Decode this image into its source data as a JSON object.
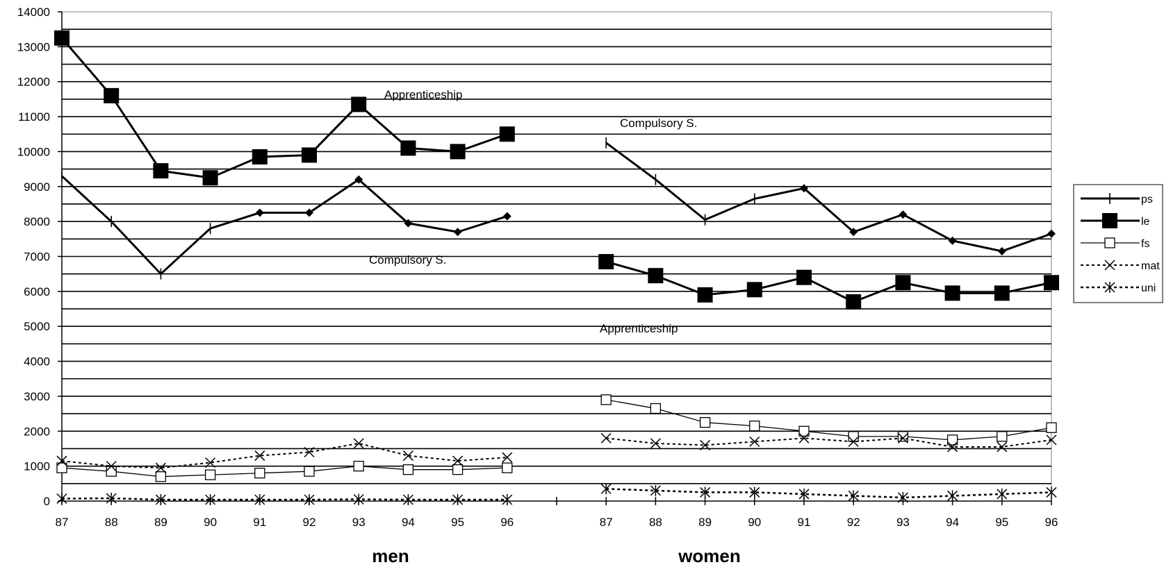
{
  "chart_data": {
    "type": "line",
    "ylim": [
      0,
      14000
    ],
    "y_ticks": [
      "0",
      "1000",
      "2000",
      "3000",
      "4000",
      "5000",
      "6000",
      "7000",
      "8000",
      "9000",
      "10000",
      "11000",
      "12000",
      "13000",
      "14000"
    ],
    "grid": true,
    "legend_position": "right",
    "groups": [
      {
        "label": "men",
        "categories": [
          "87",
          "88",
          "89",
          "90",
          "91",
          "92",
          "93",
          "94",
          "95",
          "96"
        ],
        "annotations": [
          "Apprenticeship",
          "Compulsory S."
        ],
        "series": [
          {
            "name": "ps",
            "values": [
              9300,
              8000,
              6500,
              7800,
              8250,
              8250,
              9200,
              7950,
              7700,
              8150
            ]
          },
          {
            "name": "le",
            "values": [
              13250,
              11600,
              9450,
              9250,
              9850,
              9900,
              11350,
              10100,
              10000,
              10500
            ]
          },
          {
            "name": "fs",
            "values": [
              950,
              850,
              700,
              750,
              800,
              850,
              1000,
              900,
              900,
              950
            ]
          },
          {
            "name": "mat",
            "values": [
              1150,
              1000,
              950,
              1100,
              1300,
              1400,
              1650,
              1300,
              1150,
              1250
            ]
          },
          {
            "name": "uni",
            "values": [
              70,
              80,
              40,
              40,
              40,
              40,
              50,
              40,
              40,
              40
            ]
          }
        ]
      },
      {
        "label": "women",
        "categories": [
          "87",
          "88",
          "89",
          "90",
          "91",
          "92",
          "93",
          "94",
          "95",
          "96"
        ],
        "annotations": [
          "Compulsory S.",
          "Apprenticeship"
        ],
        "series": [
          {
            "name": "ps",
            "values": [
              10250,
              9200,
              8050,
              8650,
              8950,
              7700,
              8200,
              7450,
              7150,
              7650
            ]
          },
          {
            "name": "le",
            "values": [
              6850,
              6450,
              5900,
              6050,
              6400,
              5700,
              6250,
              5950,
              5950,
              6250
            ]
          },
          {
            "name": "fs",
            "values": [
              2900,
              2650,
              2250,
              2150,
              2000,
              1850,
              1850,
              1750,
              1850,
              2100
            ]
          },
          {
            "name": "mat",
            "values": [
              1800,
              1650,
              1600,
              1700,
              1800,
              1700,
              1800,
              1550,
              1550,
              1750
            ]
          },
          {
            "name": "uni",
            "values": [
              350,
              300,
              250,
              250,
              200,
              150,
              100,
              150,
              200,
              250
            ]
          }
        ]
      }
    ]
  }
}
